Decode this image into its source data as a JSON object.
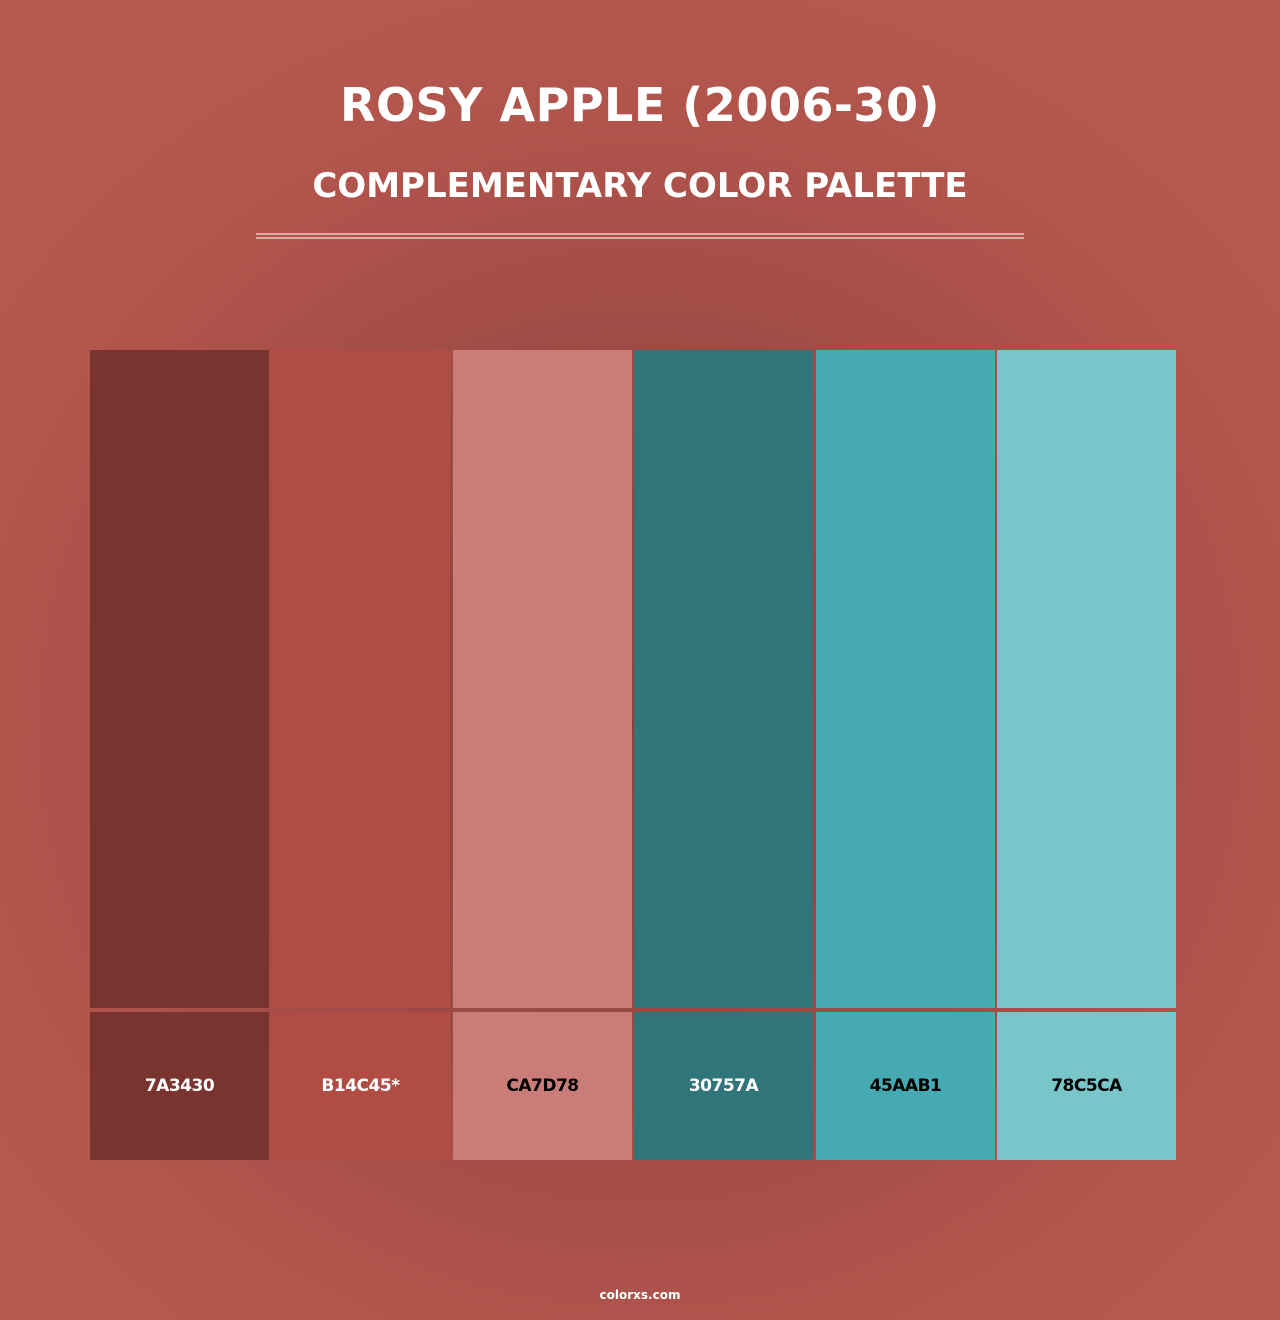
{
  "header": {
    "title": "ROSY APPLE (2006-30)",
    "subtitle": "COMPLEMENTARY COLOR PALETTE"
  },
  "background_color": "#B45850",
  "palette": [
    {
      "hex": "7A3430",
      "color": "#7A3430",
      "text_color": "#FFFFFF"
    },
    {
      "hex": "B14C45*",
      "color": "#B14C45",
      "text_color": "#FFFFFF"
    },
    {
      "hex": "CA7D78",
      "color": "#CA7D78",
      "text_color": "#000000"
    },
    {
      "hex": "30757A",
      "color": "#30757A",
      "text_color": "#FFFFFF"
    },
    {
      "hex": "45AAB1",
      "color": "#45AAB1",
      "text_color": "#000000"
    },
    {
      "hex": "78C5CA",
      "color": "#78C5CA",
      "text_color": "#000000"
    }
  ],
  "footer": {
    "site": "colorxs.com"
  }
}
